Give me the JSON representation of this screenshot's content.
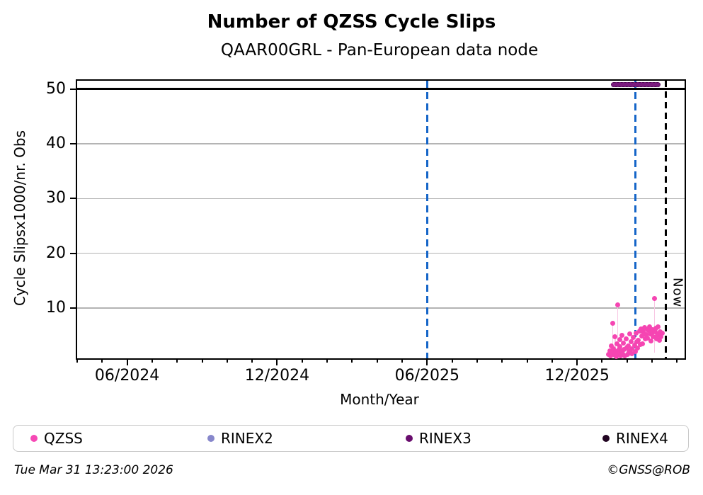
{
  "header": {
    "title": "Number of QZSS Cycle Slips",
    "subtitle": "QAAR00GRL - Pan-European data node"
  },
  "footer": {
    "timestamp": "Tue Mar 31 13:23:00 2026",
    "credit": "©GNSS@ROB"
  },
  "legend": {
    "items": [
      {
        "label": "QZSS",
        "color": "#f649b5"
      },
      {
        "label": "RINEX2",
        "color": "#8787cb"
      },
      {
        "label": "RINEX3",
        "color": "#690d6e"
      },
      {
        "label": "RINEX4",
        "color": "#220522"
      }
    ]
  },
  "colors": {
    "qzss_point": "#f545b2",
    "stem": "#f8c8e4",
    "event_line_blue": "#1565c8",
    "now_line": "#000000",
    "rinex3_bar": "#7a1a7e",
    "grid": "#b4b4b4",
    "axis": "#000000"
  },
  "chart_data": {
    "type": "scatter",
    "title": "Number of QZSS Cycle Slips",
    "subtitle": "QAAR00GRL - Pan-European data node",
    "xlabel": "Month/Year",
    "ylabel": "Cycle Slipsx1000/nr. Obs",
    "x_axis_note": "x encoded as months since 2024-04; axis spans ~04/2024 to ~04/2026",
    "xlim_months": [
      0,
      24.3
    ],
    "x_major_ticks": [
      {
        "m": 2,
        "label": "06/2024"
      },
      {
        "m": 8,
        "label": "12/2024"
      },
      {
        "m": 14,
        "label": "06/2025"
      },
      {
        "m": 20,
        "label": "12/2025"
      }
    ],
    "x_minor_tick_months": [
      0,
      1,
      2,
      3,
      4,
      5,
      6,
      7,
      8,
      9,
      10,
      11,
      12,
      13,
      14,
      15,
      16,
      17,
      18,
      19,
      20,
      21,
      22,
      23,
      24
    ],
    "ylim": [
      0.8,
      51.5
    ],
    "y_ticks": [
      10,
      20,
      30,
      40,
      50
    ],
    "grid": true,
    "hline_y": 50,
    "vlines": [
      {
        "m": 14.0,
        "style": "dashed",
        "color": "#1565c8"
      },
      {
        "m": 22.32,
        "style": "dashed",
        "color": "#1565c8"
      }
    ],
    "now_line": {
      "m": 23.55,
      "label": "Now",
      "style": "dashed",
      "color": "#000000"
    },
    "rinex3_bar": {
      "m_start": 21.35,
      "m_end": 23.35,
      "y": 50.8,
      "color": "#7a1a7e"
    },
    "legend_position": "bottom",
    "series_name": "QZSS",
    "stems": [
      [
        21.42,
        7.2
      ],
      [
        21.52,
        4.8
      ],
      [
        21.62,
        10.6
      ],
      [
        23.1,
        11.7
      ]
    ],
    "points": [
      [
        21.25,
        1.5
      ],
      [
        21.3,
        2.2
      ],
      [
        21.33,
        1.2
      ],
      [
        21.38,
        3.0
      ],
      [
        21.4,
        1.8
      ],
      [
        21.42,
        7.2
      ],
      [
        21.45,
        2.6
      ],
      [
        21.5,
        1.4
      ],
      [
        21.52,
        4.8
      ],
      [
        21.55,
        2.0
      ],
      [
        21.58,
        1.1
      ],
      [
        21.6,
        3.4
      ],
      [
        21.62,
        10.6
      ],
      [
        21.65,
        2.3
      ],
      [
        21.68,
        1.6
      ],
      [
        21.7,
        4.2
      ],
      [
        21.72,
        2.9
      ],
      [
        21.75,
        1.3
      ],
      [
        21.78,
        5.0
      ],
      [
        21.8,
        2.1
      ],
      [
        21.82,
        1.7
      ],
      [
        21.85,
        3.6
      ],
      [
        21.88,
        2.4
      ],
      [
        21.9,
        1.2
      ],
      [
        21.95,
        4.4
      ],
      [
        22.0,
        2.8
      ],
      [
        22.02,
        1.5
      ],
      [
        22.05,
        3.1
      ],
      [
        22.08,
        2.2
      ],
      [
        22.1,
        5.2
      ],
      [
        22.12,
        1.9
      ],
      [
        22.15,
        3.8
      ],
      [
        22.18,
        2.5
      ],
      [
        22.2,
        1.6
      ],
      [
        22.25,
        4.6
      ],
      [
        22.3,
        3.2
      ],
      [
        22.32,
        2.0
      ],
      [
        22.35,
        5.4
      ],
      [
        22.4,
        3.9
      ],
      [
        22.42,
        2.7
      ],
      [
        22.45,
        4.1
      ],
      [
        22.5,
        5.8
      ],
      [
        22.52,
        3.3
      ],
      [
        22.55,
        6.2
      ],
      [
        22.6,
        4.9
      ],
      [
        22.62,
        3.5
      ],
      [
        22.65,
        5.6
      ],
      [
        22.7,
        6.4
      ],
      [
        22.72,
        4.3
      ],
      [
        22.75,
        5.1
      ],
      [
        22.8,
        6.0
      ],
      [
        22.82,
        4.5
      ],
      [
        22.85,
        5.9
      ],
      [
        22.9,
        6.6
      ],
      [
        22.92,
        5.3
      ],
      [
        22.95,
        4.0
      ],
      [
        23.0,
        6.1
      ],
      [
        23.02,
        5.5
      ],
      [
        23.05,
        4.7
      ],
      [
        23.1,
        11.7
      ],
      [
        23.12,
        5.7
      ],
      [
        23.15,
        6.3
      ],
      [
        23.18,
        4.4
      ],
      [
        23.2,
        5.0
      ],
      [
        23.25,
        6.5
      ],
      [
        23.28,
        5.2
      ],
      [
        23.3,
        4.1
      ],
      [
        23.32,
        5.6
      ],
      [
        23.35,
        4.8
      ],
      [
        23.4,
        5.4
      ]
    ]
  }
}
